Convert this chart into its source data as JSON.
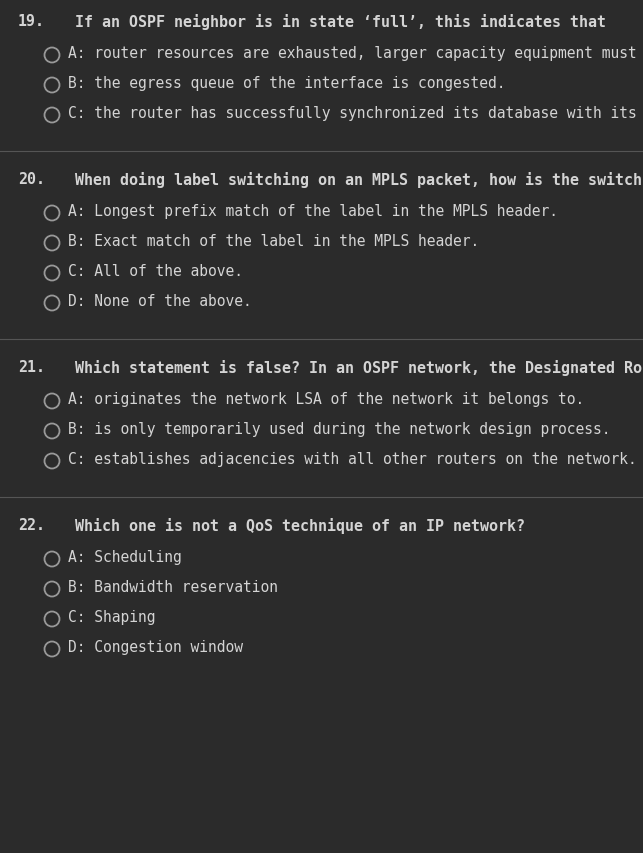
{
  "background_color": "#2b2b2b",
  "text_color": "#d4d4d4",
  "separator_color": "#555555",
  "q_font_size": 10.8,
  "a_font_size": 10.5,
  "circle_edge_color": "#999999",
  "questions": [
    {
      "number": "19.",
      "question": "If an OSPF neighbor is in state ‘full’, this indicates that",
      "answers": [
        "A: router resources are exhausted, larger capacity equipment must be installed.",
        "B: the egress queue of the interface is congested.",
        "C: the router has successfully synchronized its database with its neighbor."
      ]
    },
    {
      "number": "20.",
      "question": "When doing label switching on an MPLS packet, how is the switching decision done?",
      "answers": [
        "A: Longest prefix match of the label in the MPLS header.",
        "B: Exact match of the label in the MPLS header.",
        "C: All of the above.",
        "D: None of the above."
      ]
    },
    {
      "number": "21.",
      "question": "Which statement is false? In an OSPF network, the Designated Router…",
      "answers": [
        "A: originates the network LSA of the network it belongs to.",
        "B: is only temporarily used during the network design process.",
        "C: establishes adjacencies with all other routers on the network."
      ]
    },
    {
      "number": "22.",
      "question": "Which one is not a QoS technique of an IP network?",
      "answers": [
        "A: Scheduling",
        "B: Bandwidth reservation",
        "C: Shaping",
        "D: Congestion window"
      ]
    }
  ]
}
